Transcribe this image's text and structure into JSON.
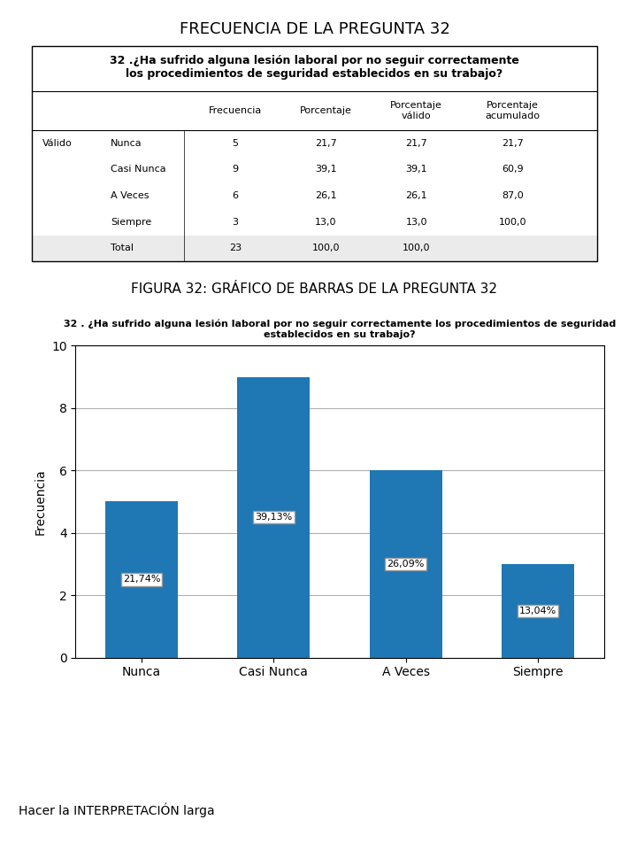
{
  "chart_data": [
    {
      "type": "table",
      "title": "FRECUENCIA DE LA PREGUNTA 32",
      "subtitle": "32 .¿Ha sufrido alguna lesión laboral por no seguir correctamente\nlos procedimientos de seguridad establecidos en su trabajo?",
      "row_header": "Válido",
      "columns": [
        "Frecuencia",
        "Porcentaje",
        "Porcentaje\nválido",
        "Porcentaje\nacumulado"
      ],
      "rows": [
        [
          "Nunca",
          "5",
          "21,7",
          "21,7",
          "21,7"
        ],
        [
          "Casi Nunca",
          "9",
          "39,1",
          "39,1",
          "60,9"
        ],
        [
          "A Veces",
          "6",
          "26,1",
          "26,1",
          "87,0"
        ],
        [
          "Siempre",
          "3",
          "13,0",
          "13,0",
          "100,0"
        ],
        [
          "Total",
          "23",
          "100,0",
          "100,0"
        ]
      ]
    },
    {
      "type": "bar",
      "title": "FIGURA 32: GRÁFICO DE BARRAS DE LA PREGUNTA 32",
      "subtitle": "32 . ¿Ha sufrido alguna lesión laboral por no seguir correctamente los procedimientos de seguridad\nestablecidos en su trabajo?",
      "categories": [
        "Nunca",
        "Casi Nunca",
        "A Veces",
        "Siempre"
      ],
      "values": [
        5,
        9,
        6,
        3
      ],
      "percentages": [
        21.74,
        39.13,
        26.09,
        13.04
      ],
      "percentage_labels": [
        "21,74%",
        "39,13%",
        "26,09%",
        "13,04%"
      ],
      "y_label": "Frecuencia",
      "ylim": [
        0,
        10
      ],
      "yticks": [
        0,
        2,
        4,
        6,
        8,
        10
      ],
      "grid": true,
      "annotation": "Hacer la INTERPRETACIÓN larga"
    }
  ]
}
